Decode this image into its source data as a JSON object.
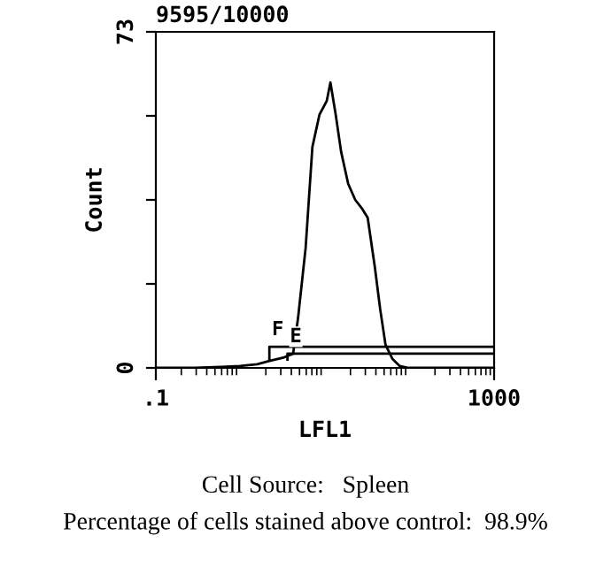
{
  "chart_data": {
    "type": "line",
    "title": "9595/10000",
    "xlabel": "LFL1",
    "ylabel": "Count",
    "x": [
      0.1,
      0.29,
      0.98,
      1.58,
      2.2,
      3.3,
      4.2,
      4.8,
      5.9,
      7.1,
      8.6,
      10.5,
      11.6,
      13.4,
      15.5,
      18.8,
      22.8,
      27.7,
      32,
      38.8,
      45,
      52,
      63,
      76.6,
      97.5,
      1000
    ],
    "series": [
      {
        "color": "#000000",
        "values": [
          0,
          0,
          0.4,
          0.8,
          1.5,
          2.3,
          3.1,
          10.8,
          26,
          48,
          55,
          58,
          62,
          55,
          47,
          40,
          36.5,
          34.5,
          32.6,
          22,
          12.7,
          5,
          1.9,
          0.4,
          0,
          0
        ]
      },
      {
        "color": "#000000",
        "x": [
          2.2,
          2.2,
          1000
        ],
        "values": [
          1.8,
          4.6,
          4.6
        ]
      },
      {
        "color": "#000000",
        "x": [
          3.6,
          3.6,
          1000
        ],
        "values": [
          1.8,
          3.1,
          3.1
        ]
      }
    ],
    "log": "x",
    "xlim": [
      0.1,
      1000
    ],
    "xticks": [
      {
        "value": 0.1,
        "label": ".1"
      },
      1000
    ],
    "ylim": [
      0,
      73
    ],
    "yticks": [
      0,
      {
        "value": 18.25,
        "label": null
      },
      {
        "value": 36.5,
        "label": null
      },
      {
        "value": 54.75,
        "label": null
      },
      73
    ],
    "grid": false,
    "legend": false,
    "marker": "none",
    "line_style": "solid",
    "annotations": [
      {
        "text": "F",
        "x": 2.2,
        "y": 4.6
      },
      {
        "text": "E",
        "x": 3.6,
        "y": 3.1
      },
      "Cell Source:   Spleen",
      "Percentage of cells stained above control:  98.9%"
    ]
  }
}
